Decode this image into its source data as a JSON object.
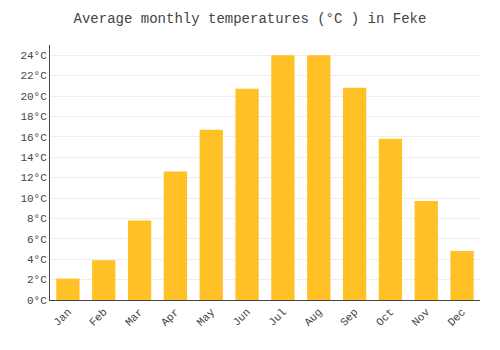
{
  "chart_data": {
    "type": "bar",
    "title": "Average monthly temperatures (°C ) in Feke",
    "categories": [
      "Jan",
      "Feb",
      "Mar",
      "Apr",
      "May",
      "Jun",
      "Jul",
      "Aug",
      "Sep",
      "Oct",
      "Nov",
      "Dec"
    ],
    "values": [
      2.1,
      3.9,
      7.8,
      12.6,
      16.7,
      20.7,
      24.0,
      24.0,
      20.8,
      15.8,
      9.7,
      4.8
    ],
    "color": "#FFC125",
    "ylim": [
      0,
      25
    ],
    "yticks": [
      {
        "value": 0,
        "label": "0°C"
      },
      {
        "value": 2,
        "label": "2°C"
      },
      {
        "value": 4,
        "label": "4°C"
      },
      {
        "value": 6,
        "label": "6°C"
      },
      {
        "value": 8,
        "label": "8°C"
      },
      {
        "value": 10,
        "label": "10°C"
      },
      {
        "value": 12,
        "label": "12°C"
      },
      {
        "value": 14,
        "label": "14°C"
      },
      {
        "value": 16,
        "label": "16°C"
      },
      {
        "value": 18,
        "label": "18°C"
      },
      {
        "value": 20,
        "label": "20°C"
      },
      {
        "value": 22,
        "label": "22°C"
      },
      {
        "value": 24,
        "label": "24°C"
      }
    ],
    "grid": true
  }
}
